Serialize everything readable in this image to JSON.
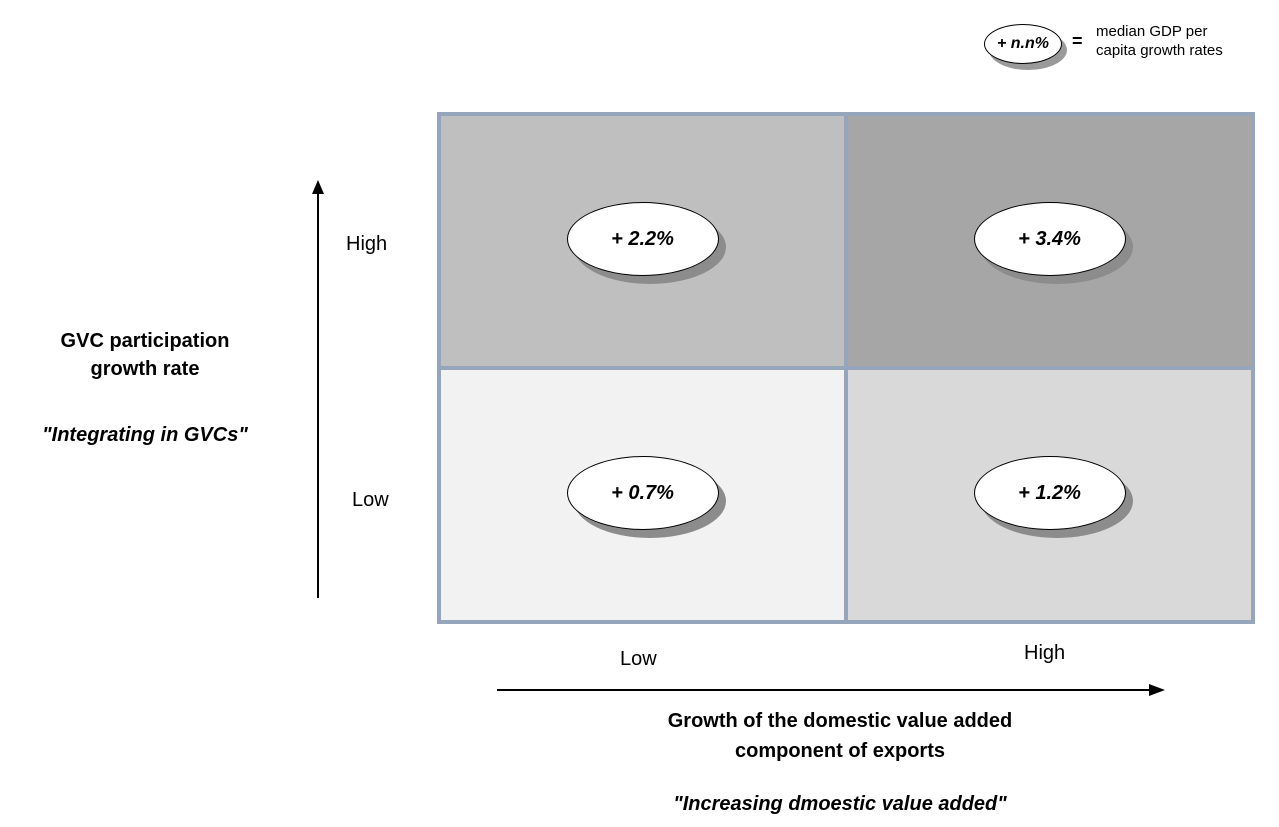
{
  "legend": {
    "sample": "+ n.n%",
    "equals": "=",
    "description_line1": "median GDP per",
    "description_line2": "capita growth rates"
  },
  "y_axis": {
    "title_line1": "GVC participation",
    "title_line2": "growth rate",
    "quote": "\"Integrating in GVCs\"",
    "tick_high": "High",
    "tick_low": "Low"
  },
  "x_axis": {
    "title_line1": "Growth of the domestic value added",
    "title_line2": "component of exports",
    "quote": "\"Increasing dmoestic value added\"",
    "tick_low": "Low",
    "tick_high": "High"
  },
  "cells": {
    "high_low": {
      "value": "+ 2.2%",
      "fill": "#bfbfbf"
    },
    "high_high": {
      "value": "+ 3.4%",
      "fill": "#a6a6a6"
    },
    "low_low": {
      "value": "+ 0.7%",
      "fill": "#f2f2f2"
    },
    "low_high": {
      "value": "+ 1.2%",
      "fill": "#d9d9d9"
    }
  },
  "colors": {
    "grid_border": "#95a6bc",
    "shadow": "#8c8c8c"
  }
}
